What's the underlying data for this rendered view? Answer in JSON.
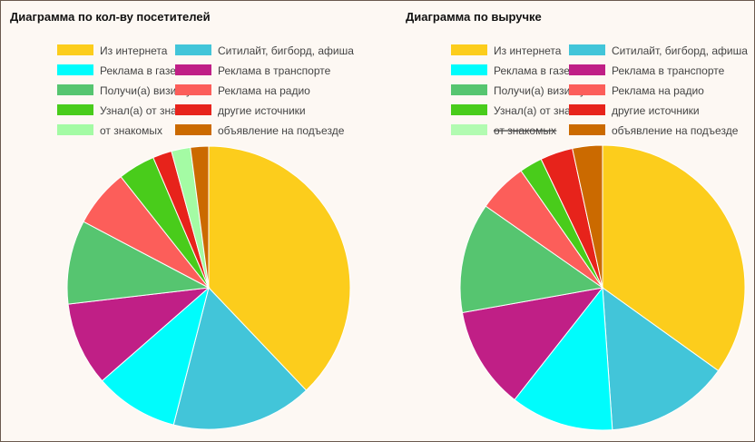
{
  "charts": [
    {
      "id": "visitors",
      "title": "Диаграмма по кол-ву посетителей",
      "chart_data": {
        "type": "pie",
        "title": "Диаграмма по кол-ву посетителей",
        "legend_position": "top",
        "slices": [
          {
            "label": "Из интернета",
            "value": 38.4,
            "color": "#fccd1c",
            "hidden": false
          },
          {
            "label": "Ситилайт, бигборд, афиша",
            "value": 16.3,
            "color": "#42c5d9",
            "hidden": false
          },
          {
            "label": "Реклама в газете",
            "value": 9.7,
            "color": "#00fcfc",
            "hidden": false
          },
          {
            "label": "Реклама в транспорте",
            "value": 9.7,
            "color": "#c01f86",
            "hidden": false
          },
          {
            "label": "Получи(а) визитку",
            "value": 9.7,
            "color": "#56c570",
            "hidden": false
          },
          {
            "label": "Реклама на радио",
            "value": 6.7,
            "color": "#fc5e5a",
            "hidden": false
          },
          {
            "label": "Узнал(а) от знакомых",
            "value": 4.3,
            "color": "#49cc1b",
            "hidden": false
          },
          {
            "label": "другие источники",
            "value": 2.2,
            "color": "#e7231b",
            "hidden": false
          },
          {
            "label": "от знакомых",
            "value": 2.2,
            "color": "#a4fba4",
            "hidden": false
          },
          {
            "label": "объявление на подъезде",
            "value": 2.1,
            "color": "#cb6a00",
            "hidden": false
          }
        ]
      }
    },
    {
      "id": "revenue",
      "title": "Диаграмма по выручке",
      "chart_data": {
        "type": "pie",
        "title": "Диаграмма по выручке",
        "legend_position": "top",
        "slices": [
          {
            "label": "Из интернета",
            "value": 34.9,
            "color": "#fccd1c",
            "hidden": false
          },
          {
            "label": "Ситилайт, бигборд, афиша",
            "value": 14.0,
            "color": "#42c5d9",
            "hidden": false
          },
          {
            "label": "Реклама в газете",
            "value": 11.7,
            "color": "#00fcfc",
            "hidden": false
          },
          {
            "label": "Реклама в транспорте",
            "value": 11.6,
            "color": "#c01f86",
            "hidden": false
          },
          {
            "label": "Получи(а) визитку",
            "value": 12.5,
            "color": "#56c570",
            "hidden": false
          },
          {
            "label": "Реклама на радио",
            "value": 5.6,
            "color": "#fc5e5a",
            "hidden": false
          },
          {
            "label": "Узнал(а) от знакомых",
            "value": 2.6,
            "color": "#49cc1b",
            "hidden": false
          },
          {
            "label": "другие источники",
            "value": 3.7,
            "color": "#e7231b",
            "hidden": false
          },
          {
            "label": "от знакомых",
            "value": 0,
            "color": "#a4fba4",
            "hidden": true
          },
          {
            "label": "объявление на подъезде",
            "value": 3.4,
            "color": "#cb6a00",
            "hidden": false
          }
        ]
      }
    }
  ]
}
